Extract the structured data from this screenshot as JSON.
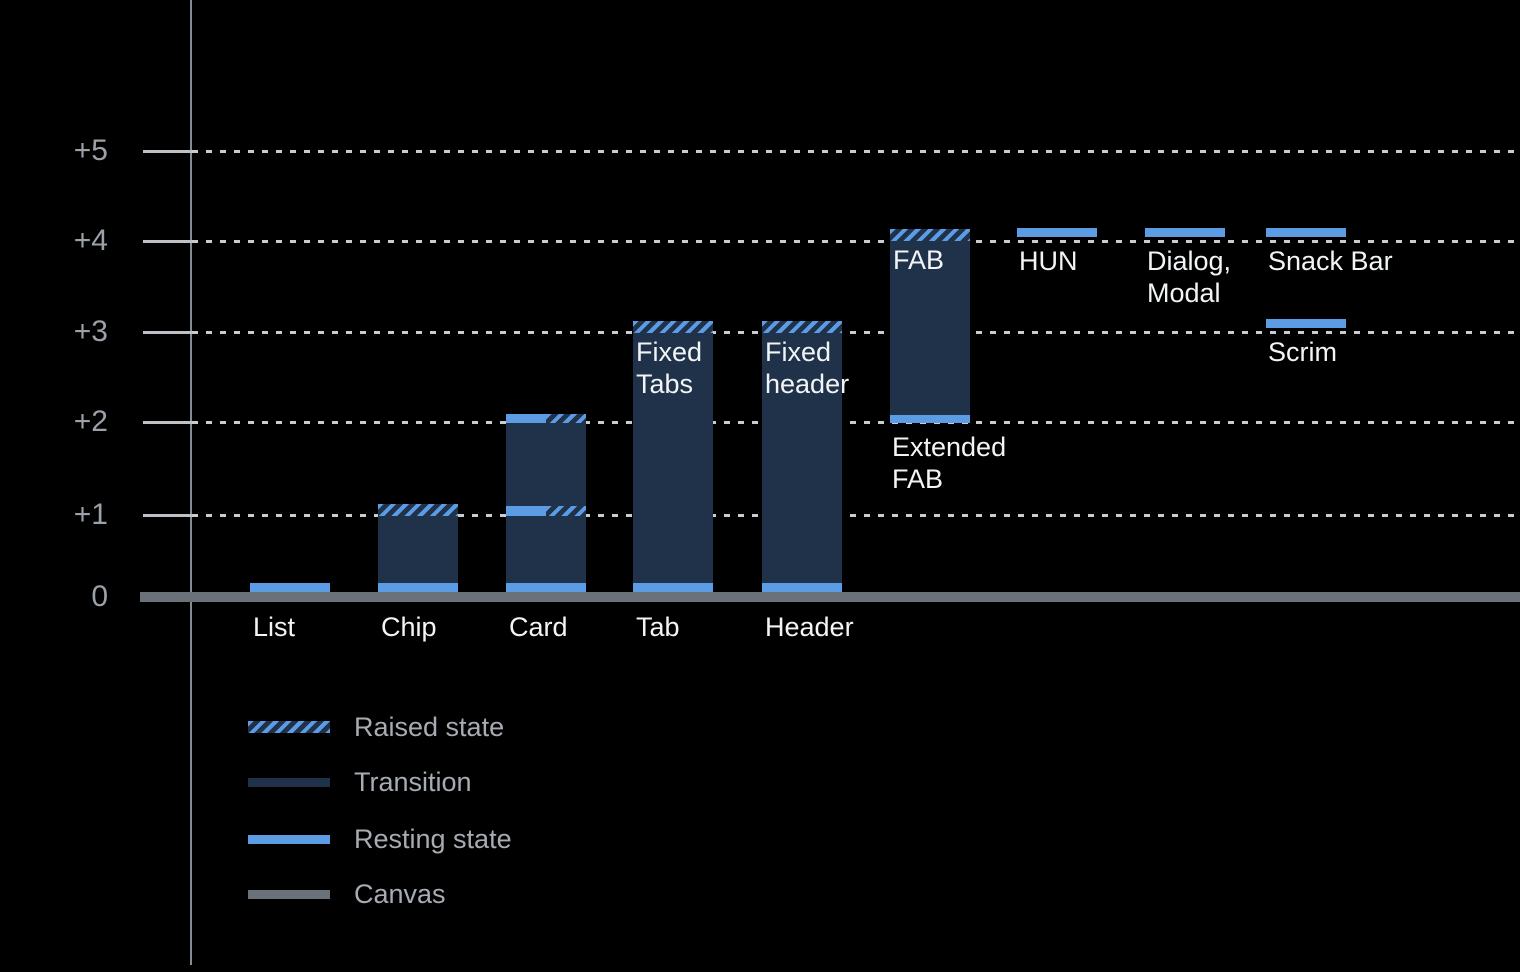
{
  "colors": {
    "background": "#000000",
    "resting": "#5C9CE5",
    "transition": "#20314A",
    "canvas": "#6B7178",
    "grid_dotted": "#C9CDD1",
    "tick_solid": "#BEC2C7",
    "axis_line": "#858B92",
    "tick_label": "#9BA1A8",
    "bar_label": "#F2F4F6",
    "legend_label": "#A7ACB2"
  },
  "chart_data": {
    "type": "bar",
    "title": "",
    "xlabel": "",
    "ylabel": "",
    "y_axis": {
      "tick_labels": [
        "0",
        "+1",
        "+2",
        "+3",
        "+4",
        "+5"
      ],
      "range": [
        0,
        5
      ],
      "gridlines": "dotted horizontal at +1..+5, solid thick canvas baseline at 0"
    },
    "legend": [
      {
        "kind": "raised",
        "label": "Raised state"
      },
      {
        "kind": "transition",
        "label": "Transition"
      },
      {
        "kind": "resting",
        "label": "Resting state"
      },
      {
        "kind": "canvas",
        "label": "Canvas"
      }
    ],
    "components": [
      {
        "name": "list",
        "col": 0,
        "below_label": "List",
        "segments": [
          [
            "resting",
            0,
            0.12
          ]
        ]
      },
      {
        "name": "chip",
        "col": 1,
        "below_label": "Chip",
        "segments": [
          [
            "resting",
            0,
            0.12
          ],
          [
            "transition",
            0.12,
            0.99
          ],
          [
            "raised",
            0.99,
            1.12
          ]
        ]
      },
      {
        "name": "card",
        "col": 2,
        "below_label": "Card",
        "segments": [
          [
            "resting",
            0,
            0.12
          ],
          [
            "transition",
            0.12,
            0.99
          ],
          [
            "split",
            0.99,
            1.1
          ],
          [
            "transition",
            1.1,
            1.99
          ],
          [
            "split",
            1.99,
            2.09
          ]
        ]
      },
      {
        "name": "tab",
        "col": 3,
        "below_label": "Tab",
        "inside_label": "Fixed\nTabs",
        "segments": [
          [
            "resting",
            0,
            0.12
          ],
          [
            "transition",
            0.12,
            2.99
          ],
          [
            "raised",
            2.99,
            3.12
          ]
        ]
      },
      {
        "name": "header",
        "col": 4,
        "below_label": "Header",
        "inside_label": "Fixed\nheader",
        "segments": [
          [
            "resting",
            0,
            0.12
          ],
          [
            "transition",
            0.12,
            2.99
          ],
          [
            "raised",
            2.99,
            3.12
          ]
        ]
      },
      {
        "name": "fab",
        "col": 5,
        "inside_label": "FAB",
        "under_label": "Extended\nFAB",
        "segments": [
          [
            "resting",
            1.99,
            2.08
          ],
          [
            "transition",
            2.08,
            4.0
          ],
          [
            "raised",
            4.0,
            4.13
          ]
        ]
      },
      {
        "name": "hun",
        "col": 6,
        "under_label": "HUN",
        "segments": [
          [
            "resting",
            4.05,
            4.15
          ]
        ]
      },
      {
        "name": "dialog-modal",
        "col": 7,
        "under_label": "Dialog,\nModal",
        "segments": [
          [
            "resting",
            4.05,
            4.15
          ]
        ]
      },
      {
        "name": "snack-bar",
        "col": 8,
        "under_label": "Snack Bar",
        "segments": [
          [
            "resting",
            4.05,
            4.15
          ]
        ]
      },
      {
        "name": "scrim",
        "col": 8,
        "under_label": "Scrim",
        "segments": [
          [
            "resting",
            3.04,
            3.14
          ]
        ]
      }
    ]
  }
}
